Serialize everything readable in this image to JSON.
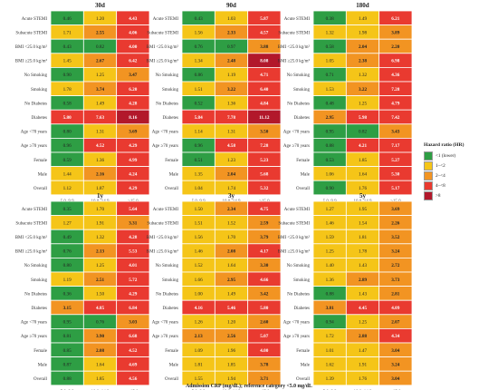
{
  "chart_data": {
    "type": "heatmap",
    "rows": [
      "Acute STEMI",
      "Subacute STEMI",
      "BMI <25.0 kg/m²",
      "BMI ≥25.0 kg/m²",
      "No Smoking",
      "Smoking",
      "No Diabetes",
      "Diabetes",
      "Age <70 years",
      "Age ≥70 years",
      "Female",
      "Male",
      "Overall"
    ],
    "categories": [
      "5.0–9.9",
      "10.0–14.9",
      "≥15.0"
    ],
    "xlabel": "Admission CRP (mg/dL); reference category <5.0 mg/dL",
    "color_scale": [
      {
        "label": "<1 (lower)",
        "color": "#2e9e44"
      },
      {
        "label": "1–<2",
        "color": "#f5c518"
      },
      {
        "label": "2–<4",
        "color": "#f29422"
      },
      {
        "label": "4–<8",
        "color": "#e93a30"
      },
      {
        "label": ">8",
        "color": "#b2182b"
      }
    ],
    "panels": [
      {
        "title": "30d",
        "values": [
          [
            "0.46",
            "1.20",
            "4.43"
          ],
          [
            "1.71",
            "2.55",
            "4.06"
          ],
          [
            "0.43",
            "0.82",
            "4.00"
          ],
          [
            "1.45",
            "2.67",
            "6.42"
          ],
          [
            "0.90",
            "1.25",
            "3.47"
          ],
          [
            "1.78",
            "3.74",
            "6.20"
          ],
          [
            "0.58",
            "1.49",
            "4.28"
          ],
          [
            "5.80",
            "7.63",
            "8.16"
          ],
          [
            "0.80",
            "1.31",
            "3.69"
          ],
          [
            "0.96",
            "4.52",
            "4.29"
          ],
          [
            "0.59",
            "1.36",
            "4.99"
          ],
          [
            "1.44",
            "2.16",
            "4.24"
          ],
          [
            "1.12",
            "1.87",
            "4.29"
          ]
        ]
      },
      {
        "title": "90d",
        "values": [
          [
            "0.43",
            "1.03",
            "5.87"
          ],
          [
            "1.56",
            "2.33",
            "4.57"
          ],
          [
            "0.76",
            "0.97",
            "3.88"
          ],
          [
            "1.34",
            "2.48",
            "8.08"
          ],
          [
            "0.86",
            "1.19",
            "4.71"
          ],
          [
            "1.51",
            "3.22",
            "6.40"
          ],
          [
            "0.52",
            "1.36",
            "4.84"
          ],
          [
            "5.84",
            "7.78",
            "11.12"
          ],
          [
            "1.14",
            "1.31",
            "3.50"
          ],
          [
            "0.96",
            "4.58",
            "7.28"
          ],
          [
            "0.51",
            "1.23",
            "5.23"
          ],
          [
            "1.35",
            "2.04",
            "5.68"
          ],
          [
            "1.04",
            "1.74",
            "5.32"
          ]
        ]
      },
      {
        "title": "180d",
        "values": [
          [
            "0.38",
            "1.49",
            "6.21"
          ],
          [
            "1.32",
            "1.98",
            "3.89"
          ],
          [
            "0.58",
            "2.04",
            "2.20"
          ],
          [
            "1.05",
            "2.38",
            "6.98"
          ],
          [
            "0.71",
            "1.32",
            "4.36"
          ],
          [
            "1.53",
            "3.22",
            "7.28"
          ],
          [
            "0.48",
            "1.25",
            "4.79"
          ],
          [
            "2.95",
            "5.98",
            "7.42"
          ],
          [
            "0.95",
            "0.82",
            "3.43"
          ],
          [
            "0.88",
            "4.21",
            "7.17"
          ],
          [
            "0.53",
            "1.85",
            "5.27"
          ],
          [
            "1.06",
            "1.64",
            "5.30"
          ],
          [
            "0.90",
            "1.76",
            "5.17"
          ]
        ]
      },
      {
        "title": "1y",
        "values": [
          [
            "0.35",
            "1.70",
            "5.64"
          ],
          [
            "1.27",
            "1.91",
            "3.31"
          ],
          [
            "0.49",
            "1.32",
            "4.28"
          ],
          [
            "0.76",
            "2.13",
            "5.53"
          ],
          [
            "0.80",
            "1.25",
            "4.01"
          ],
          [
            "1.19",
            "2.51",
            "5.72"
          ],
          [
            "0.36",
            "1.50",
            "4.29"
          ],
          [
            "3.15",
            "4.85",
            "6.84"
          ],
          [
            "0.95",
            "0.76",
            "3.03"
          ],
          [
            "0.81",
            "3.90",
            "6.68"
          ],
          [
            "0.85",
            "2.08",
            "4.52"
          ],
          [
            "0.87",
            "1.64",
            "4.69"
          ],
          [
            "0.88",
            "1.85",
            "4.56"
          ]
        ]
      },
      {
        "title": "3y",
        "values": [
          [
            "1.50",
            "2.34",
            "4.75"
          ],
          [
            "1.51",
            "1.52",
            "2.59"
          ],
          [
            "1.56",
            "1.70",
            "3.79"
          ],
          [
            "1.46",
            "2.08",
            "4.17"
          ],
          [
            "1.52",
            "1.64",
            "3.30"
          ],
          [
            "1.66",
            "2.95",
            "4.66"
          ],
          [
            "1.00",
            "1.49",
            "3.42"
          ],
          [
            "4.16",
            "5.46",
            "5.80"
          ],
          [
            "1.26",
            "1.20",
            "2.60"
          ],
          [
            "2.13",
            "2.56",
            "5.07"
          ],
          [
            "1.09",
            "1.96",
            "4.00"
          ],
          [
            "1.81",
            "1.85",
            "3.78"
          ],
          [
            "1.55",
            "1.94",
            "3.71"
          ]
        ]
      },
      {
        "title": "5y",
        "values": [
          [
            "1.27",
            "1.95",
            "3.69"
          ],
          [
            "1.46",
            "1.54",
            "2.26"
          ],
          [
            "1.59",
            "1.81",
            "3.52"
          ],
          [
            "1.25",
            "1.78",
            "3.24"
          ],
          [
            "1.40",
            "1.43",
            "2.72"
          ],
          [
            "1.36",
            "2.89",
            "3.73"
          ],
          [
            "0.88",
            "1.43",
            "2.81"
          ],
          [
            "3.81",
            "4.45",
            "4.09"
          ],
          [
            "0.94",
            "1.25",
            "2.07"
          ],
          [
            "1.72",
            "2.88",
            "4.34"
          ],
          [
            "1.01",
            "1.47",
            "3.04"
          ],
          [
            "1.62",
            "1.91",
            "3.24"
          ],
          [
            "1.39",
            "1.76",
            "3.04"
          ]
        ]
      }
    ]
  },
  "legend": {
    "title": "Hazard ratio (HR)"
  }
}
